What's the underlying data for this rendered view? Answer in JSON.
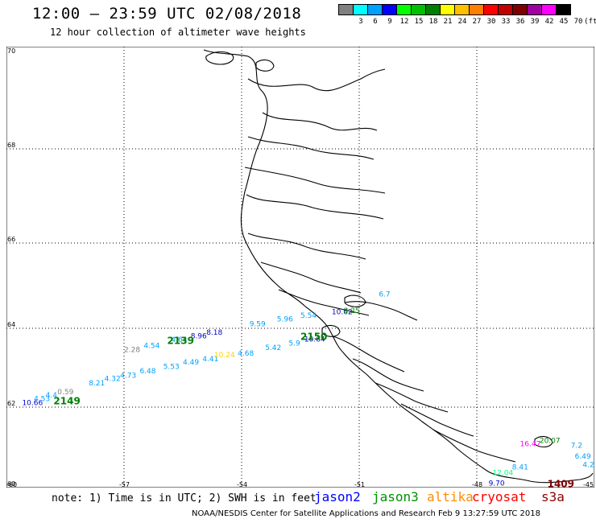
{
  "header": {
    "title": "12:00 – 23:59 UTC 02/08/2018",
    "subtitle": "12 hour collection of altimeter wave heights"
  },
  "legend": {
    "unit": "(ft)",
    "colors": [
      "#808080",
      "#00ffff",
      "#00a0ff",
      "#0000ff",
      "#00ff00",
      "#00c000",
      "#008000",
      "#ffff00",
      "#ffc000",
      "#ff8000",
      "#ff0000",
      "#c00000",
      "#800000",
      "#a000a0",
      "#ff00ff",
      "#000000"
    ],
    "labels": [
      "3",
      "6",
      "9",
      "12",
      "15",
      "18",
      "21",
      "24",
      "27",
      "30",
      "33",
      "36",
      "39",
      "42",
      "45",
      "70"
    ]
  },
  "axes": {
    "lat_ticks": [
      "70",
      "68",
      "66",
      "64",
      "62",
      "60"
    ],
    "lon_ticks": [
      "-60",
      "-57",
      "-54",
      "-51",
      "-48",
      "-45"
    ]
  },
  "observations": [
    {
      "text": "10.66",
      "color": "#0000cc",
      "lon": -59.6,
      "lat": 62.05
    },
    {
      "text": "4.53",
      "color": "#00a0ff",
      "lon": -59.3,
      "lat": 62.15
    },
    {
      "text": "4.4",
      "color": "#00a0ff",
      "lon": -59.0,
      "lat": 62.25
    },
    {
      "text": "0.59",
      "color": "#808080",
      "lon": -58.7,
      "lat": 62.33
    },
    {
      "text": "8.21",
      "color": "#00a0ff",
      "lon": -57.9,
      "lat": 62.55
    },
    {
      "text": "4.32",
      "color": "#00a0ff",
      "lon": -57.5,
      "lat": 62.66
    },
    {
      "text": "4.73",
      "color": "#00a0ff",
      "lon": -57.1,
      "lat": 62.75
    },
    {
      "text": "6.48",
      "color": "#00a0ff",
      "lon": -56.6,
      "lat": 62.86
    },
    {
      "text": "5.53",
      "color": "#00a0ff",
      "lon": -56.0,
      "lat": 62.97
    },
    {
      "text": "4.49",
      "color": "#00a0ff",
      "lon": -55.5,
      "lat": 63.08
    },
    {
      "text": "4.41",
      "color": "#00a0ff",
      "lon": -55.0,
      "lat": 63.16
    },
    {
      "text": "10.24",
      "color": "#ffd000",
      "lon": -54.7,
      "lat": 63.27
    },
    {
      "text": "4.68",
      "color": "#00a0ff",
      "lon": -54.1,
      "lat": 63.31
    },
    {
      "text": "5.42",
      "color": "#00a0ff",
      "lon": -53.4,
      "lat": 63.45
    },
    {
      "text": "5.9",
      "color": "#00a0ff",
      "lon": -52.8,
      "lat": 63.56
    },
    {
      "text": "10.64",
      "color": "#0000cc",
      "lon": -52.4,
      "lat": 63.66
    },
    {
      "text": "2.28",
      "color": "#808080",
      "lon": -57.0,
      "lat": 63.4
    },
    {
      "text": "4.54",
      "color": "#00a0ff",
      "lon": -56.5,
      "lat": 63.5
    },
    {
      "text": "4.64",
      "color": "#00a0ff",
      "lon": -55.8,
      "lat": 63.65
    },
    {
      "text": "8.96",
      "color": "#0000cc",
      "lon": -55.3,
      "lat": 63.75
    },
    {
      "text": "8.18",
      "color": "#0000cc",
      "lon": -54.9,
      "lat": 63.84
    },
    {
      "text": "9.59",
      "color": "#00a0ff",
      "lon": -53.8,
      "lat": 64.05
    },
    {
      "text": "5.96",
      "color": "#00a0ff",
      "lon": -53.1,
      "lat": 64.16
    },
    {
      "text": "5.54",
      "color": "#00a0ff",
      "lon": -52.5,
      "lat": 64.25
    },
    {
      "text": "10.62",
      "color": "#0000cc",
      "lon": -51.7,
      "lat": 64.33
    },
    {
      "text": "8.25",
      "color": "#008000",
      "lon": -51.4,
      "lat": 64.36
    },
    {
      "text": "6.7",
      "color": "#00a0ff",
      "lon": -50.5,
      "lat": 64.75
    },
    {
      "text": "12.04",
      "color": "#00ff80",
      "lon": -47.6,
      "lat": 60.31
    },
    {
      "text": "8.41",
      "color": "#00a0ff",
      "lon": -47.1,
      "lat": 60.45
    },
    {
      "text": "9.70",
      "color": "#0000cc",
      "lon": -47.7,
      "lat": 60.05
    },
    {
      "text": "20.07",
      "color": "#008000",
      "lon": -46.4,
      "lat": 61.11
    },
    {
      "text": "6.49",
      "color": "#00a0ff",
      "lon": -45.5,
      "lat": 60.72
    },
    {
      "text": "4.2",
      "color": "#00a0ff",
      "lon": -45.3,
      "lat": 60.51
    },
    {
      "text": "7.2",
      "color": "#00a0ff",
      "lon": -45.6,
      "lat": 60.99
    },
    {
      "text": "16.47",
      "color": "#ff00ff",
      "lon": -46.9,
      "lat": 61.03
    }
  ],
  "passes": [
    {
      "text": "2149",
      "color": "#008000",
      "lon": -58.8,
      "lat": 62.07
    },
    {
      "text": "2150",
      "color": "#008000",
      "lon": -52.5,
      "lat": 63.7
    },
    {
      "text": "2139",
      "color": "#008000",
      "lon": -55.9,
      "lat": 63.6
    },
    {
      "text": "1409",
      "color": "#800000",
      "lon": -46.2,
      "lat": 60.01
    }
  ],
  "footer": {
    "note": "note: 1) Time is in UTC; 2) SWH is in feet",
    "satellites": [
      {
        "name": "jason2",
        "color": "#0000ff"
      },
      {
        "name": "jason3",
        "color": "#009000"
      },
      {
        "name": "altika",
        "color": "#ff8c00"
      },
      {
        "name": "cryosat",
        "color": "#ff0000"
      },
      {
        "name": "s3a",
        "color": "#8b0000"
      }
    ],
    "credit": "NOAA/NESDIS Center for Satellite Applications and Research    Feb  9 13:27:59 UTC 2018"
  }
}
